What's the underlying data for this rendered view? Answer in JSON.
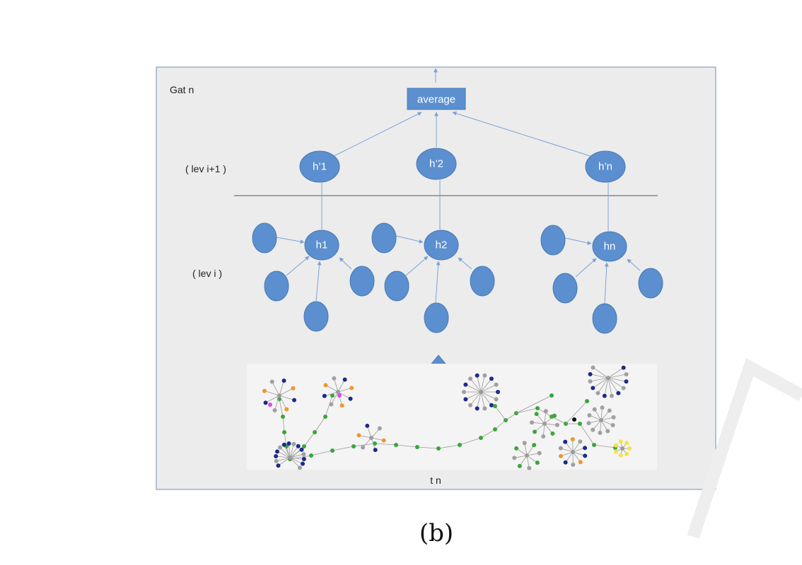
{
  "top_fragment": "( )",
  "frame": {
    "title": "Gat n",
    "level_upper": "( lev i+1 )",
    "level_lower": "( lev i )",
    "bottom_label": "t n"
  },
  "aggregate": {
    "label": "average"
  },
  "upper_nodes": [
    {
      "label": "h’1"
    },
    {
      "label": "h’2"
    },
    {
      "label": "h’n"
    }
  ],
  "lower_nodes": [
    {
      "label": "h1"
    },
    {
      "label": "h2"
    },
    {
      "label": "hn"
    }
  ],
  "caption": "(b)",
  "colors": {
    "node_fill": "#5b8fcf",
    "node_stroke": "#4a78b4",
    "frame_bg": "#ececec",
    "frame_border": "#6f8fb6",
    "edge": "#7aa3d4",
    "graph_green": "#3aa53a",
    "graph_navy": "#1c2a8a",
    "graph_gray": "#a0a0a0",
    "graph_orange": "#f0962e",
    "graph_magenta": "#d84fd8",
    "graph_yellow": "#f2e24a"
  }
}
